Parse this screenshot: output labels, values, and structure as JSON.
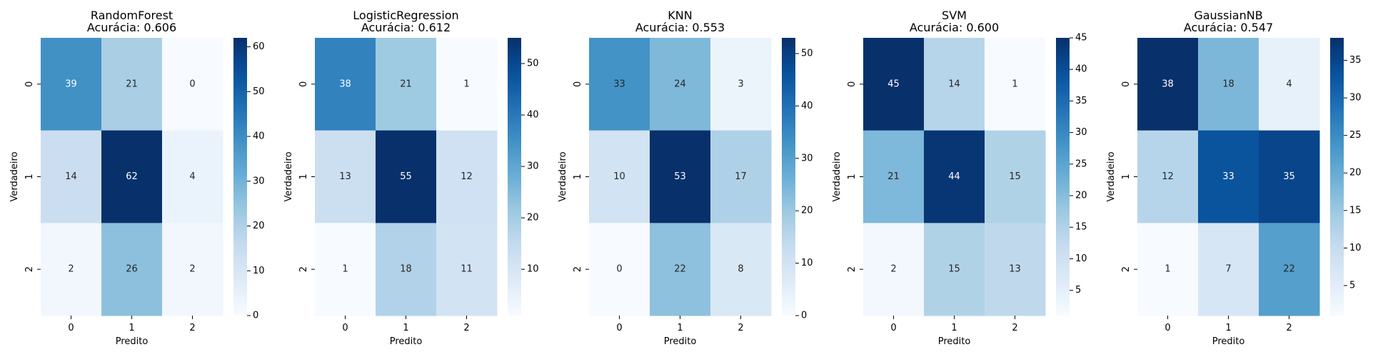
{
  "chart_data": [
    {
      "type": "heatmap",
      "title": "RandomForest",
      "subtitle": "Acurácia: 0.606",
      "xlabel": "Predito",
      "ylabel": "Verdadeiro",
      "x_categories": [
        "0",
        "1",
        "2"
      ],
      "y_categories": [
        "0",
        "1",
        "2"
      ],
      "values": [
        [
          39,
          21,
          0
        ],
        [
          14,
          62,
          4
        ],
        [
          2,
          26,
          2
        ]
      ],
      "colorbar": {
        "min": 0,
        "max": 62,
        "ticks": [
          0,
          10,
          20,
          30,
          40,
          50,
          60
        ]
      },
      "colormap": "Blues"
    },
    {
      "type": "heatmap",
      "title": "LogisticRegression",
      "subtitle": "Acurácia: 0.612",
      "xlabel": "Predito",
      "ylabel": "Verdadeiro",
      "x_categories": [
        "0",
        "1",
        "2"
      ],
      "y_categories": [
        "0",
        "1",
        "2"
      ],
      "values": [
        [
          38,
          21,
          1
        ],
        [
          13,
          55,
          12
        ],
        [
          1,
          18,
          11
        ]
      ],
      "colorbar": {
        "min": 1,
        "max": 55,
        "ticks": [
          10,
          20,
          30,
          40,
          50
        ]
      },
      "colormap": "Blues"
    },
    {
      "type": "heatmap",
      "title": "KNN",
      "subtitle": "Acurácia: 0.553",
      "xlabel": "Predito",
      "ylabel": "Verdadeiro",
      "x_categories": [
        "0",
        "1",
        "2"
      ],
      "y_categories": [
        "0",
        "1",
        "2"
      ],
      "values": [
        [
          33,
          24,
          3
        ],
        [
          10,
          53,
          17
        ],
        [
          0,
          22,
          8
        ]
      ],
      "colorbar": {
        "min": 0,
        "max": 53,
        "ticks": [
          0,
          10,
          20,
          30,
          40,
          50
        ]
      },
      "colormap": "Blues"
    },
    {
      "type": "heatmap",
      "title": "SVM",
      "subtitle": "Acurácia: 0.600",
      "xlabel": "Predito",
      "ylabel": "Verdadeiro",
      "x_categories": [
        "0",
        "1",
        "2"
      ],
      "y_categories": [
        "0",
        "1",
        "2"
      ],
      "values": [
        [
          45,
          14,
          1
        ],
        [
          21,
          44,
          15
        ],
        [
          2,
          15,
          13
        ]
      ],
      "colorbar": {
        "min": 1,
        "max": 45,
        "ticks": [
          5,
          10,
          15,
          20,
          25,
          30,
          35,
          40,
          45
        ]
      },
      "colormap": "Blues"
    },
    {
      "type": "heatmap",
      "title": "GaussianNB",
      "subtitle": "Acurácia: 0.547",
      "xlabel": "Predito",
      "ylabel": "Verdadeiro",
      "x_categories": [
        "0",
        "1",
        "2"
      ],
      "y_categories": [
        "0",
        "1",
        "2"
      ],
      "values": [
        [
          38,
          18,
          4
        ],
        [
          12,
          33,
          35
        ],
        [
          1,
          7,
          22
        ]
      ],
      "colorbar": {
        "min": 1,
        "max": 38,
        "ticks": [
          5,
          10,
          15,
          20,
          25,
          30,
          35
        ]
      },
      "colormap": "Blues"
    }
  ]
}
